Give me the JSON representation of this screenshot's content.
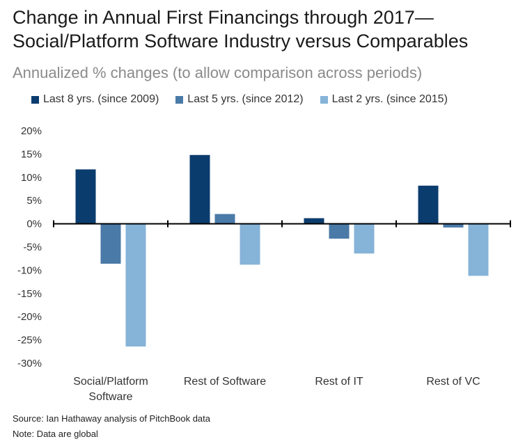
{
  "title_line1": "Change in Annual First Financings through 2017—",
  "title_line2": "Social/Platform Software Industry versus Comparables",
  "subtitle": "Annualized % changes (to allow comparison across periods)",
  "footer": {
    "source": "Source: Ian Hathaway analysis of PitchBook data",
    "note": "Note: Data are global"
  },
  "chart_data": {
    "type": "bar",
    "categories": [
      [
        "Social/Platform",
        "Software"
      ],
      [
        "Rest of Software"
      ],
      [
        "Rest of IT"
      ],
      [
        "Rest of VC"
      ]
    ],
    "series": [
      {
        "name": "Last 8 yrs. (since 2009)",
        "color": "#0b3c6e",
        "values": [
          11.7,
          14.8,
          1.2,
          8.2
        ]
      },
      {
        "name": "Last 5 yrs. (since 2012)",
        "color": "#4a7aa7",
        "values": [
          -8.6,
          2.1,
          -3.2,
          -0.8
        ]
      },
      {
        "name": "Last 2 yrs. (since 2015)",
        "color": "#86b3d8",
        "values": [
          -26.4,
          -8.8,
          -6.4,
          -11.2
        ]
      }
    ],
    "yticks": [
      20,
      15,
      10,
      5,
      0,
      -5,
      -10,
      -15,
      -20,
      -25,
      -30
    ],
    "ytick_labels": [
      "20%",
      "15%",
      "10%",
      "5%",
      "0%",
      "-5%",
      "-10%",
      "-15%",
      "-20%",
      "-25%",
      "-30%"
    ],
    "ylim": [
      -30,
      20
    ],
    "grid": false,
    "legend_position": "top"
  }
}
